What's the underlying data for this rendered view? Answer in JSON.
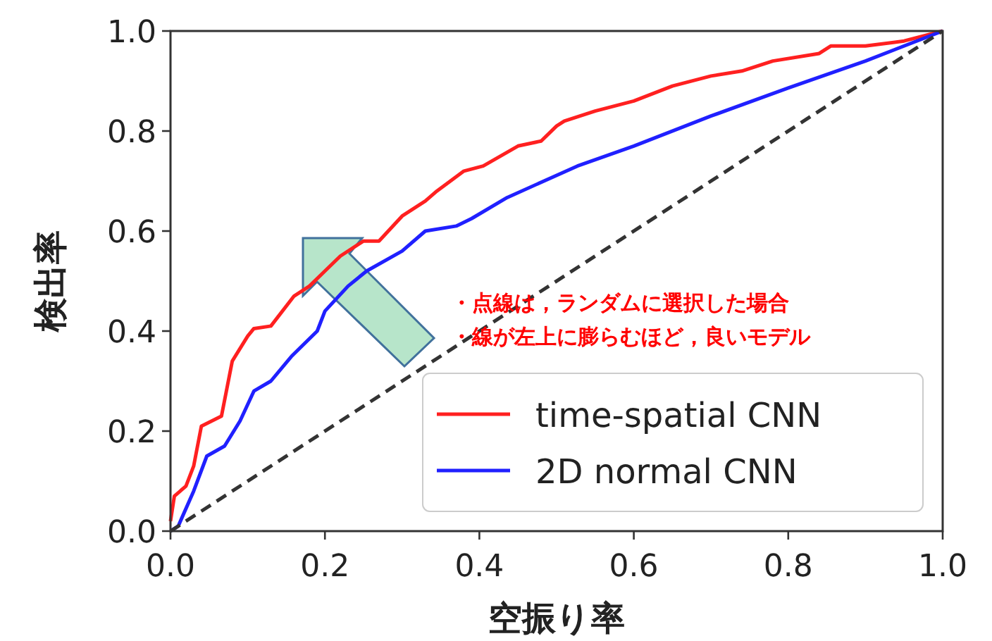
{
  "chart_data": {
    "type": "line",
    "xlabel": "空振り率",
    "ylabel": "検出率",
    "xlim": [
      0,
      1
    ],
    "ylim": [
      0,
      1
    ],
    "xticks": [
      {
        "value": 0,
        "label": "0.0"
      },
      {
        "value": 0.2,
        "label": "0.2"
      },
      {
        "value": 0.4,
        "label": "0.4"
      },
      {
        "value": 0.6,
        "label": "0.6"
      },
      {
        "value": 0.8,
        "label": "0.8"
      },
      {
        "value": 1,
        "label": "1.0"
      }
    ],
    "yticks": [
      {
        "value": 0,
        "label": "0.0"
      },
      {
        "value": 0.2,
        "label": "0.2"
      },
      {
        "value": 0.4,
        "label": "0.4"
      },
      {
        "value": 0.6,
        "label": "0.6"
      },
      {
        "value": 0.8,
        "label": "0.8"
      },
      {
        "value": 1,
        "label": "1.0"
      }
    ],
    "legend": "bottom right",
    "grid": false,
    "annotations": [
      "・点線は，ランダムに選択した場合",
      "・線が左上に膨らむほど，良いモデル"
    ],
    "series": [
      {
        "name": "time-spatial CNN",
        "color": "#ff2020",
        "x": [
          0,
          0.005,
          0.02,
          0.03,
          0.04,
          0.066,
          0.08,
          0.1,
          0.108,
          0.13,
          0.16,
          0.18,
          0.2,
          0.22,
          0.25,
          0.27,
          0.3,
          0.33,
          0.345,
          0.38,
          0.405,
          0.45,
          0.48,
          0.5,
          0.51,
          0.55,
          0.6,
          0.65,
          0.7,
          0.74,
          0.78,
          0.84,
          0.855,
          0.9,
          0.95,
          1
        ],
        "values": [
          0.02,
          0.07,
          0.09,
          0.13,
          0.21,
          0.23,
          0.34,
          0.39,
          0.405,
          0.41,
          0.47,
          0.49,
          0.52,
          0.55,
          0.58,
          0.58,
          0.63,
          0.66,
          0.68,
          0.72,
          0.73,
          0.77,
          0.78,
          0.81,
          0.82,
          0.84,
          0.86,
          0.89,
          0.91,
          0.92,
          0.94,
          0.955,
          0.97,
          0.97,
          0.98,
          1
        ]
      },
      {
        "name": "2D normal CNN",
        "color": "#2020ff",
        "x": [
          0,
          0.01,
          0.03,
          0.047,
          0.07,
          0.09,
          0.108,
          0.13,
          0.157,
          0.19,
          0.2,
          0.23,
          0.254,
          0.3,
          0.33,
          0.37,
          0.39,
          0.436,
          0.527,
          0.6,
          0.7,
          0.8,
          0.9,
          1
        ],
        "values": [
          0,
          0.01,
          0.08,
          0.15,
          0.17,
          0.22,
          0.28,
          0.3,
          0.35,
          0.4,
          0.44,
          0.49,
          0.52,
          0.56,
          0.6,
          0.61,
          0.625,
          0.667,
          0.73,
          0.77,
          0.83,
          0.886,
          0.94,
          1
        ]
      },
      {
        "color": "#333333",
        "line_style": "dashed",
        "x": [
          0,
          1
        ],
        "values": [
          0,
          1
        ]
      }
    ]
  }
}
